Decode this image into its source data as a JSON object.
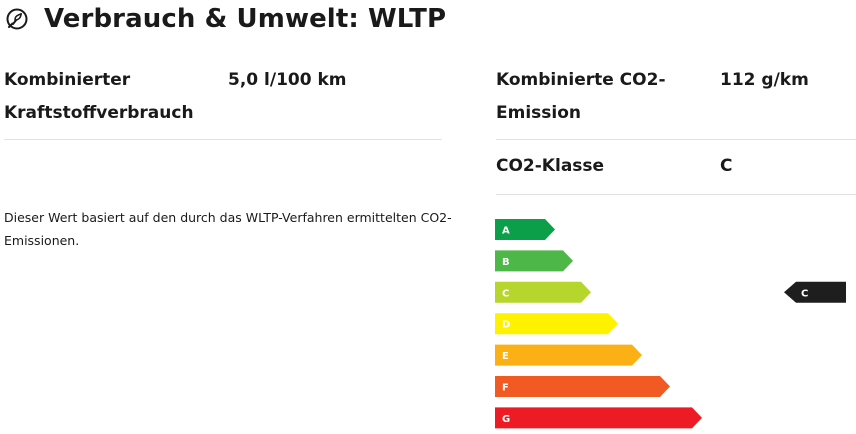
{
  "header": {
    "title": "Verbrauch & Umwelt: WLTP",
    "icon": "leaf-icon"
  },
  "left_panel": {
    "consumption_label": "Kombinierter Kraftstoffverbrauch",
    "consumption_label_line1": "Kombinierter",
    "consumption_label_line2": "Kraftstoffverbrauch",
    "consumption_value": "5,0 l/100 km",
    "note_text": "Dieser Wert basiert auf den durch das WLTP-Verfahren ermittelten CO2-Emissionen."
  },
  "right_panel": {
    "emission_label": "Kombinierte CO2-Emission",
    "emission_label_line1": "Kombinierte CO2-",
    "emission_label_line2": "Emission",
    "emission_value": "112 g/km",
    "class_label": "CO2-Klasse",
    "class_value": "C"
  },
  "efficiency_scale": {
    "classes": [
      {
        "letter": "A",
        "color": "#0b9f4a"
      },
      {
        "letter": "B",
        "color": "#4db848"
      },
      {
        "letter": "C",
        "color": "#b6d52d"
      },
      {
        "letter": "D",
        "color": "#fff200"
      },
      {
        "letter": "E",
        "color": "#fbb115"
      },
      {
        "letter": "F",
        "color": "#f15a22"
      },
      {
        "letter": "G",
        "color": "#ed1c24"
      }
    ],
    "current_class": "C",
    "indicator_color": "#1e1e1e"
  }
}
